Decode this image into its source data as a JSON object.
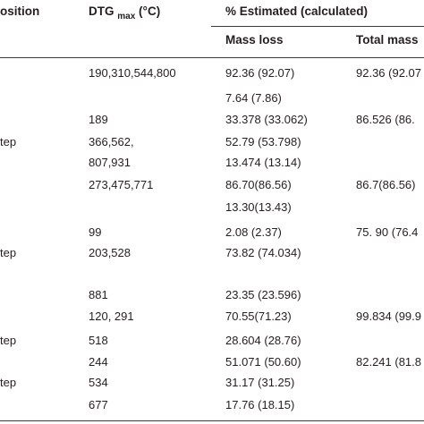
{
  "header": {
    "col1": "osition",
    "col2_main": "DTG",
    "col2_sub": "max",
    "col2_unit": "(°C)",
    "col3": "% Estimated (calculated)",
    "col3a": "Mass loss",
    "col3b": "Total mass"
  },
  "rows": [
    {
      "c1": "",
      "c2": "190,310,544,800",
      "c3": "92.36 (92.07)",
      "c4": "92.36 (92.07"
    },
    {
      "c1": "",
      "c2": "",
      "c3": "7.64 (7.86)",
      "c4": ""
    },
    {
      "c1": "",
      "c2": "189",
      "c3": "33.378 (33.062)",
      "c4": "86.526 (86."
    },
    {
      "c1": "tep",
      "c2": "366,562,",
      "c3": "52.79 (53.798)",
      "c4": ""
    },
    {
      "c1": "",
      "c2": "807,931",
      "c3": "13.474 (13.14)",
      "c4": ""
    },
    {
      "c1": "",
      "c2": "273,475,771",
      "c3": "86.70(86.56)",
      "c4": "86.7(86.56)"
    },
    {
      "c1": "",
      "c2": "",
      "c3": "13.30(13.43)",
      "c4": ""
    },
    {
      "c1": "",
      "c2": "99",
      "c3": "2.08 (2.37)",
      "c4": "75. 90 (76.4"
    },
    {
      "c1": "tep",
      "c2": "203,528",
      "c3": "73.82 (74.034)",
      "c4": ""
    },
    {
      "c1": "",
      "c2": "881",
      "c3": "23.35 (23.596)",
      "c4": ""
    },
    {
      "c1": "",
      "c2": "120, 291",
      "c3": "70.55(71.23)",
      "c4": "99.834 (99.9"
    },
    {
      "c1": "tep",
      "c2": "518",
      "c3": "28.604 (28.76)",
      "c4": ""
    },
    {
      "c1": "",
      "c2": "244",
      "c3": "51.071 (50.60)",
      "c4": "82.241 (81.8"
    },
    {
      "c1": "tep",
      "c2": "534",
      "c3": "31.17 (31.25)",
      "c4": ""
    },
    {
      "c1": "",
      "c2": "677",
      "c3": "17.76 (18.15)",
      "c4": ""
    }
  ]
}
